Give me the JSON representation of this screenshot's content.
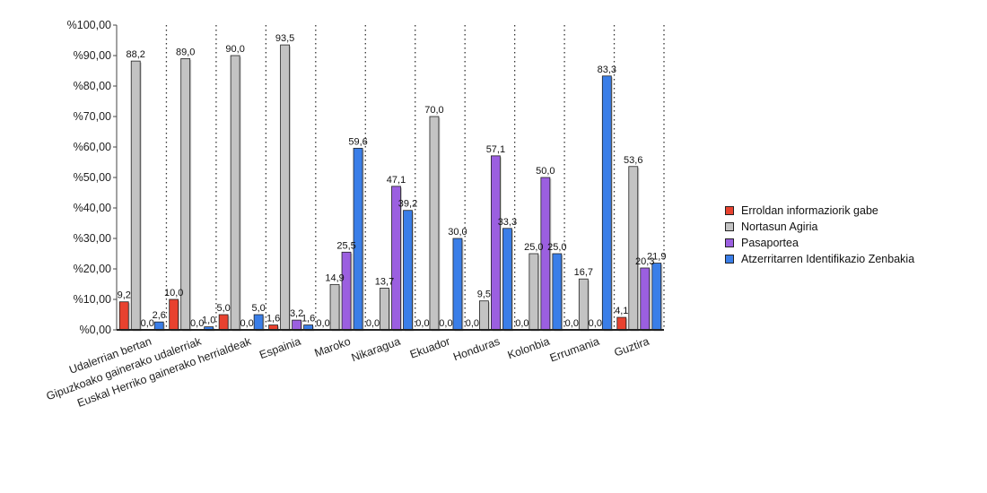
{
  "chart_data": {
    "type": "bar",
    "categories": [
      "Udalerrian bertan",
      "Gipuzkoako gainerako udalerriak",
      "Euskal Herriko gainerako herrialdeak",
      "Espainia",
      "Maroko",
      "Nikaragua",
      "Ekuador",
      "Honduras",
      "Kolonbia",
      "Errumania",
      "Guztira"
    ],
    "series": [
      {
        "name": "Erroldan informaziorik gabe",
        "color": "#e8422f",
        "values": [
          9.2,
          10.0,
          5.0,
          1.6,
          0.0,
          0.0,
          0.0,
          0.0,
          0.0,
          0.0,
          4.1
        ],
        "labels": [
          "9,2",
          "10,0",
          "5,0",
          "1,6",
          "0,0",
          "0,0",
          "0,0",
          "0,0",
          "0,0",
          "0,0",
          "4,1"
        ]
      },
      {
        "name": "Nortasun Agiria",
        "color": "#c3c3c3",
        "values": [
          88.2,
          89.0,
          90.0,
          93.5,
          14.9,
          13.7,
          70.0,
          9.5,
          25.0,
          16.7,
          53.6
        ],
        "labels": [
          "88,2",
          "89,0",
          "90,0",
          "93,5",
          "14,9",
          "13,7",
          "70,0",
          "9,5",
          "25,0",
          "16,7",
          "53,6"
        ]
      },
      {
        "name": "Pasaportea",
        "color": "#9b5fe0",
        "values": [
          0.0,
          0.0,
          0.0,
          3.2,
          25.5,
          47.1,
          0.0,
          57.1,
          50.0,
          0.0,
          20.3
        ],
        "labels": [
          "0,0",
          "0,0",
          "0,0",
          "3,2",
          "25,5",
          "47,1",
          "0,0",
          "57,1",
          "50,0",
          "0,0",
          "20,3"
        ]
      },
      {
        "name": "Atzerritarren Identifikazio Zenbakia",
        "color": "#3a7ee8",
        "values": [
          2.6,
          1.0,
          5.0,
          1.6,
          59.6,
          39.2,
          30.0,
          33.3,
          25.0,
          83.3,
          21.9
        ],
        "labels": [
          "2,6",
          "1,0",
          "5,0",
          "1,6",
          "59,6",
          "39,2",
          "30,0",
          "33,3",
          "25,0",
          "83,3",
          "21,9"
        ]
      }
    ],
    "yticks": [
      0,
      10,
      20,
      30,
      40,
      50,
      60,
      70,
      80,
      90,
      100
    ],
    "ytick_labels": [
      "%0,00",
      "%10,00",
      "%20,00",
      "%30,00",
      "%40,00",
      "%50,00",
      "%60,00",
      "%70,00",
      "%80,00",
      "%90,00",
      "%100,00"
    ],
    "ylim": [
      0,
      100
    ],
    "title": "",
    "xlabel": "",
    "ylabel": "",
    "grid": "vertical dotted separators",
    "legend_position": "right"
  }
}
